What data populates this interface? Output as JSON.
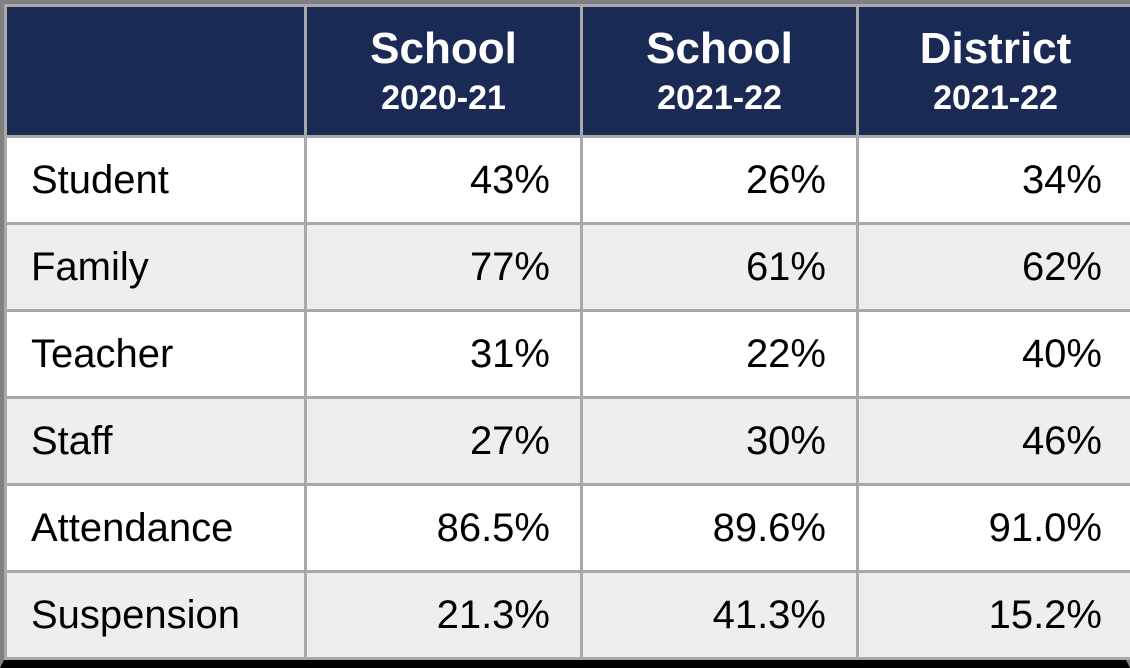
{
  "table": {
    "header_bg": "#1b2a55",
    "header_fg": "#ffffff",
    "grid_color": "#a9a9a9",
    "outer_border_color": "#808080",
    "bottom_border_color": "#000000",
    "row_bg_even": "#ffffff",
    "row_bg_odd": "#eeeeee",
    "header_title_fontsize": 44,
    "header_sub_fontsize": 34,
    "body_fontsize": 40,
    "columns": [
      {
        "title": "",
        "sub": ""
      },
      {
        "title": "School",
        "sub": "2020-21"
      },
      {
        "title": "School",
        "sub": "2021-22"
      },
      {
        "title": "District",
        "sub": "2021-22"
      }
    ],
    "rows": [
      {
        "label": "Student",
        "values": [
          "43%",
          "26%",
          "34%"
        ]
      },
      {
        "label": "Family",
        "values": [
          "77%",
          "61%",
          "62%"
        ]
      },
      {
        "label": "Teacher",
        "values": [
          "31%",
          "22%",
          "40%"
        ]
      },
      {
        "label": "Staff",
        "values": [
          "27%",
          "30%",
          "46%"
        ]
      },
      {
        "label": "Attendance",
        "values": [
          "86.5%",
          "89.6%",
          "91.0%"
        ]
      },
      {
        "label": "Suspension",
        "values": [
          "21.3%",
          "41.3%",
          "15.2%"
        ]
      }
    ]
  }
}
